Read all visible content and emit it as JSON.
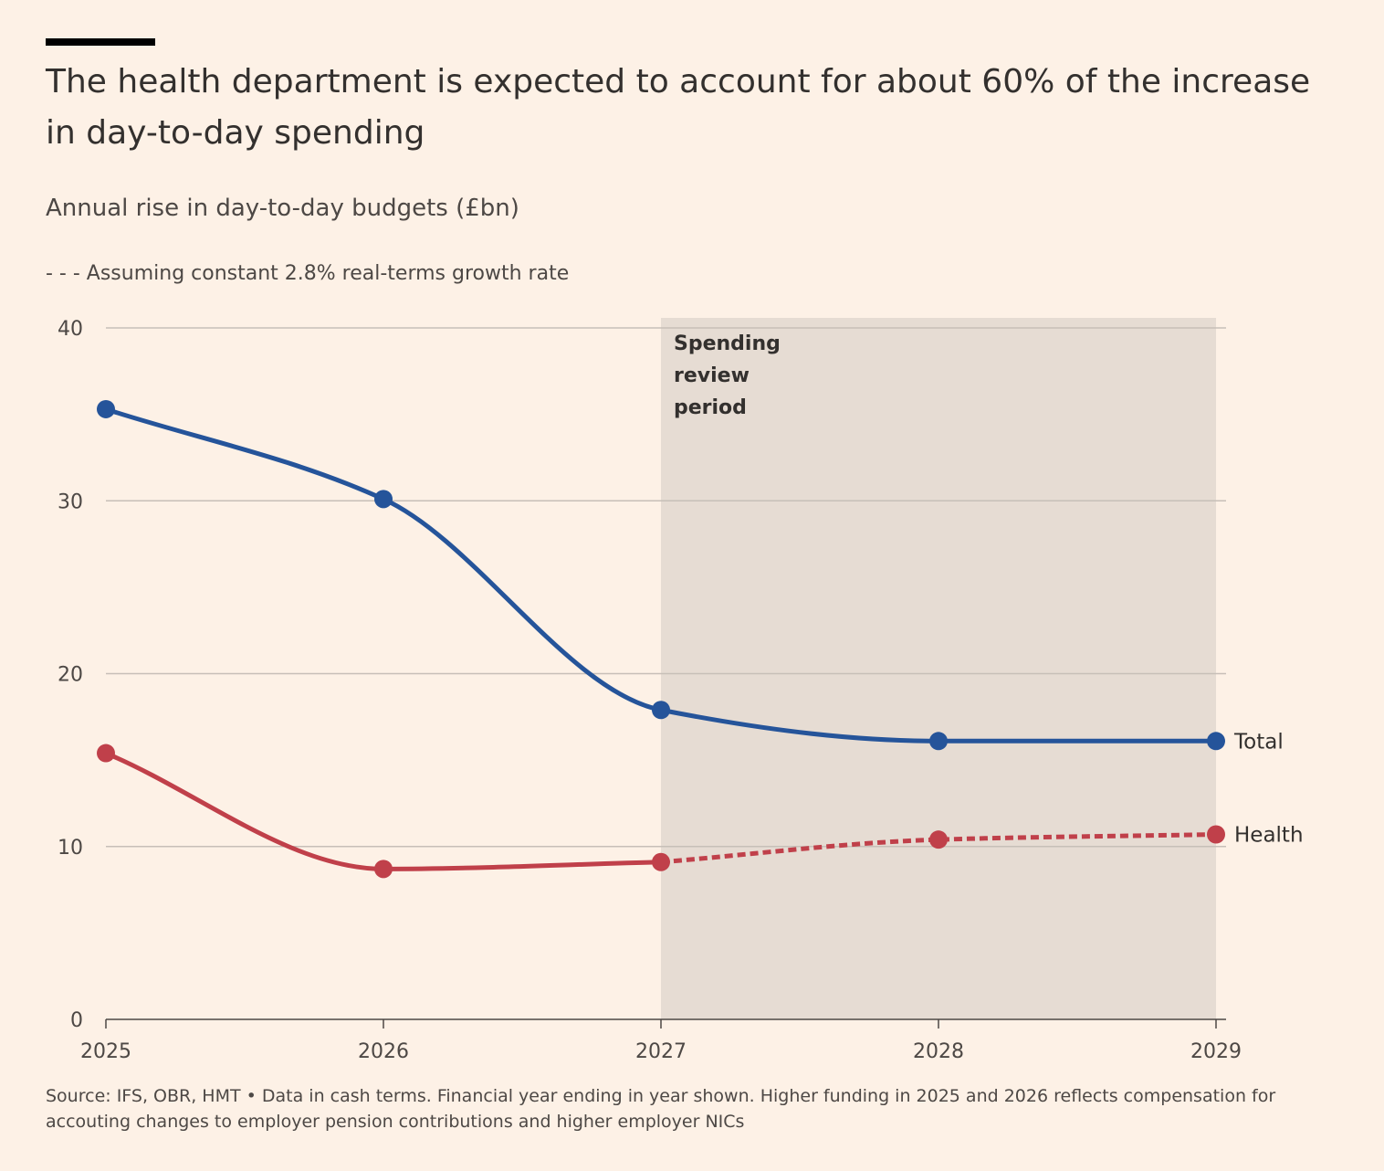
{
  "title": "The health department is expected to account for about 60% of the increase in day-to-day spending",
  "subtitle": "Annual rise in day-to-day budgets (£bn)",
  "legend_note": "- - - Assuming constant 2.8% real-terms growth rate",
  "source": "Source: IFS, OBR, HMT • Data in cash terms. Financial year ending in year shown. Higher funding in 2025 and 2026 reflects compensation for accouting changes to employer pension contributions and higher employer NICs",
  "colors": {
    "background": "#FDF1E6",
    "total": "#25549A",
    "health": "#C0404A",
    "shade": "#E6DCD3",
    "gridline": "#C7BFB8",
    "axis": "#4D4845"
  },
  "chart_data": {
    "type": "line",
    "x": [
      2025,
      2026,
      2027,
      2028,
      2029
    ],
    "xlim": [
      2025,
      2029
    ],
    "ylim": [
      0,
      40
    ],
    "yticks": [
      0,
      10,
      20,
      30,
      40
    ],
    "grid": true,
    "series": [
      {
        "name": "Total",
        "values": [
          35.3,
          30.1,
          17.9,
          16.1,
          16.1
        ],
        "color": "#25549A",
        "dashed_from_index": null
      },
      {
        "name": "Health",
        "values": [
          15.4,
          8.7,
          9.1,
          10.4,
          10.7
        ],
        "color": "#C0404A",
        "dashed_from_index": 2
      }
    ],
    "annotations": [
      {
        "type": "shaded-region",
        "x_start": 2027,
        "x_end": 2029,
        "lines": [
          "Spending",
          "review",
          "period"
        ]
      }
    ]
  }
}
